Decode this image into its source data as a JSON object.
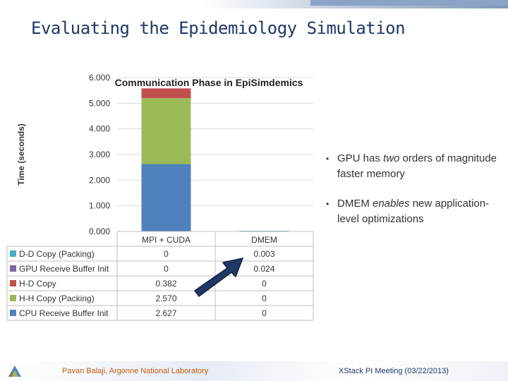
{
  "slide": {
    "title": "Evaluating the Epidemiology Simulation",
    "bullets": [
      {
        "parts": [
          {
            "t": "GPU has "
          },
          {
            "t": "two",
            "em": true
          },
          {
            "t": " orders of magnitude faster memory"
          }
        ]
      },
      {
        "parts": [
          {
            "t": "DMEM "
          },
          {
            "t": "enables",
            "em": true
          },
          {
            "t": " new application-level optimizations"
          }
        ]
      }
    ],
    "footer_left": "Pavan Balaji, Argonne National Laboratory",
    "footer_right": "XStack PI Meeting (03/22/2013)"
  },
  "colors": {
    "title": "#1f3864",
    "footer_left": "#c55a11",
    "arrow": "#1f3864"
  },
  "chart_data": {
    "type": "bar",
    "stacked": true,
    "title": "Communication Phase in EpiSimdemics",
    "ylabel": "Time (seconds)",
    "xlabel": "",
    "categories": [
      "MPI + CUDA",
      "DMEM"
    ],
    "ylim": [
      0,
      6
    ],
    "yticks": [
      "0.000",
      "1.000",
      "2.000",
      "3.000",
      "4.000",
      "5.000",
      "6.000"
    ],
    "grid": true,
    "legend": "data-table-below",
    "series": [
      {
        "name": "CPU Receive Buffer Init",
        "color": "#4f81bd",
        "values": [
          2.627,
          0
        ],
        "labels": [
          "2.627",
          "0"
        ]
      },
      {
        "name": "H-H Copy (Packing)",
        "color": "#9bbb59",
        "values": [
          2.57,
          0
        ],
        "labels": [
          "2.570",
          "0"
        ]
      },
      {
        "name": "H-D Copy",
        "color": "#c0504d",
        "values": [
          0.382,
          0
        ],
        "labels": [
          "0.382",
          "0"
        ]
      },
      {
        "name": "GPU Receive Buffer Init",
        "color": "#8064a2",
        "values": [
          0,
          0.024
        ],
        "labels": [
          "0",
          "0.024"
        ]
      },
      {
        "name": "D-D Copy (Packing)",
        "color": "#4bacc6",
        "values": [
          0,
          0.003
        ],
        "labels": [
          "0",
          "0.003"
        ]
      }
    ]
  }
}
